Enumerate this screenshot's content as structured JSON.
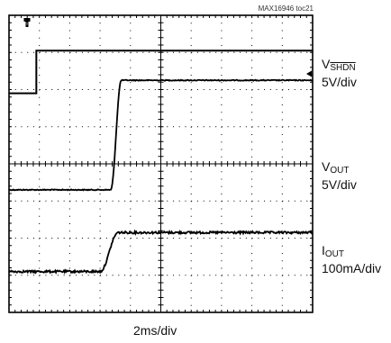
{
  "chart_data": {
    "type": "line",
    "figure_id": "MAX16946 toc21",
    "xlabel": "2ms/div",
    "grid": true,
    "divisions": {
      "x": 10,
      "y": 8
    },
    "trigger_marker": "T",
    "series": [
      {
        "name_main": "V",
        "name_sub": "SHDN",
        "scale": "5V/div",
        "start_level_div": 5.9,
        "end_level_div": 7.05,
        "step_time_div": 0.9
      },
      {
        "name_main": "V",
        "name_sub": "OUT",
        "scale": "5V/div",
        "start_level_div": 3.3,
        "end_level_div": 6.25,
        "rise_start_div": 3.35,
        "rise_end_div": 3.7
      },
      {
        "name_main": "I",
        "name_sub": "OUT",
        "scale": "100mA/div",
        "start_level_div": 1.1,
        "end_level_div": 2.15,
        "rise_start_div": 3.0,
        "rise_end_div": 3.6
      }
    ]
  }
}
